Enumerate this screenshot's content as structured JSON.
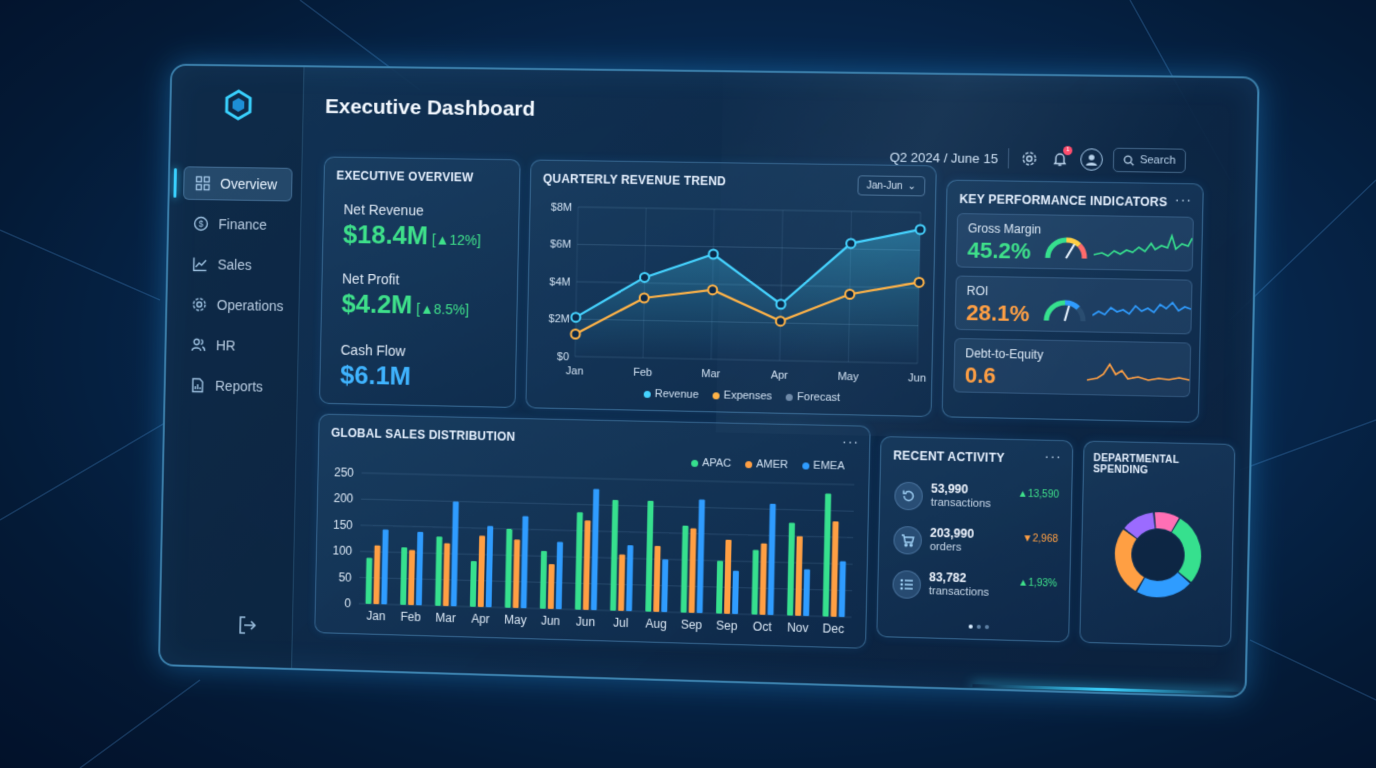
{
  "header": {
    "title": "Executive Dashboard",
    "date_label": "Q2 2024 / June 15",
    "notification_count": "1",
    "search_label": "Search"
  },
  "sidebar": {
    "items": [
      {
        "label": "Overview",
        "icon": "grid-icon",
        "active": true
      },
      {
        "label": "Finance",
        "icon": "dollar-circle-icon",
        "active": false
      },
      {
        "label": "Sales",
        "icon": "trend-chart-icon",
        "active": false
      },
      {
        "label": "Operations",
        "icon": "gear-icon",
        "active": false
      },
      {
        "label": "HR",
        "icon": "people-icon",
        "active": false
      },
      {
        "label": "Reports",
        "icon": "document-icon",
        "active": false
      }
    ]
  },
  "overview": {
    "title": "EXECUTIVE OVERVIEW",
    "net_revenue_label": "Net Revenue",
    "net_revenue_value": "$18.4M",
    "net_revenue_change": "[▲12%]",
    "net_profit_label": "Net Profit",
    "net_profit_value": "$4.2M",
    "net_profit_change": "[▲8.5%]",
    "cash_flow_label": "Cash Flow",
    "cash_flow_value": "$6.1M"
  },
  "revenue_trend": {
    "title": "QUARTERLY REVENUE TREND",
    "range": "Jan-Jun",
    "legend": [
      "Revenue",
      "Expenses",
      "Forecast"
    ]
  },
  "kpi": {
    "title": "KEY PERFORMANCE INDICATORS",
    "items": [
      {
        "label": "Gross Margin",
        "value": "45.2%",
        "gauge": 0.75
      },
      {
        "label": "ROI",
        "value": "28.1%",
        "gauge": 0.55
      },
      {
        "label": "Debt-to-Equity",
        "value": "0.6"
      }
    ]
  },
  "sales": {
    "title": "GLOBAL SALES DISTRIBUTION",
    "legend": [
      "APAC",
      "AMER",
      "EMEA"
    ]
  },
  "activity": {
    "title": "RECENT ACTIVITY",
    "items": [
      {
        "value": "53,990",
        "sub": "transactions",
        "change": "▲13,590",
        "dir": "up"
      },
      {
        "value": "203,990",
        "sub": "orders",
        "change": "▼2,968",
        "dir": "down"
      },
      {
        "value": "83,782",
        "sub": "transactions",
        "change": "▲1,93%",
        "dir": "up"
      }
    ]
  },
  "spending": {
    "title": "DEPARTMENTAL SPENDING"
  },
  "colors": {
    "apac": "#36e08e",
    "amer": "#ff9f43",
    "emea": "#2f9cff",
    "revenue": "#45d3ff",
    "expenses": "#ffb347",
    "forecast": "#6f8aa8"
  },
  "chart_data": [
    {
      "type": "line",
      "title": "QUARTERLY REVENUE TREND",
      "categories": [
        "Jan",
        "Feb",
        "Mar",
        "Apr",
        "May",
        "Jun"
      ],
      "ylim": [
        0,
        8
      ],
      "yticks": [
        "$0",
        "$2M",
        "$4M",
        "$6M",
        "$8M"
      ],
      "series": [
        {
          "name": "Revenue",
          "values": [
            2.1,
            4.3,
            5.6,
            3.0,
            6.3,
            7.1
          ]
        },
        {
          "name": "Expenses",
          "values": [
            1.2,
            3.2,
            3.7,
            2.1,
            3.6,
            4.3
          ]
        }
      ],
      "legend": [
        "Revenue",
        "Expenses",
        "Forecast"
      ],
      "grid": true
    },
    {
      "type": "bar",
      "title": "GLOBAL SALES DISTRIBUTION",
      "categories": [
        "Jan",
        "Feb",
        "Mar",
        "Apr",
        "May",
        "Jun",
        "Jun",
        "Jul",
        "Aug",
        "Sep",
        "Sep",
        "Oct",
        "Nov",
        "Dec"
      ],
      "ylim": [
        0,
        250
      ],
      "yticks": [
        "0",
        "50",
        "100",
        "150",
        "200",
        "250"
      ],
      "series": [
        {
          "name": "APAC",
          "values": [
            88,
            110,
            132,
            87,
            150,
            110,
            185,
            210,
            210,
            165,
            100,
            122,
            175,
            232
          ]
        },
        {
          "name": "AMER",
          "values": [
            112,
            105,
            120,
            136,
            130,
            85,
            170,
            107,
            125,
            160,
            140,
            135,
            150,
            180
          ]
        },
        {
          "name": "EMEA",
          "values": [
            143,
            140,
            200,
            155,
            175,
            128,
            230,
            125,
            100,
            215,
            82,
            210,
            88,
            105
          ]
        }
      ],
      "legend_position": "top-right",
      "grid": true
    },
    {
      "type": "pie",
      "title": "DEPARTMENTAL SPENDING",
      "values": [
        28,
        22,
        27,
        13,
        10
      ],
      "colors": [
        "#36e08e",
        "#2f9cff",
        "#ff9f43",
        "#9b6bff",
        "#ff6fb5"
      ]
    }
  ]
}
